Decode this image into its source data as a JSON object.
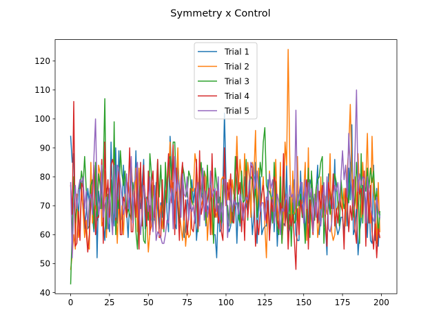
{
  "chart_data": {
    "type": "line",
    "title": "Symmetry x Control",
    "xlabel": "",
    "ylabel": "",
    "xlim": [
      -10,
      210
    ],
    "ylim": [
      39.6,
      127.4
    ],
    "xticks": [
      0,
      25,
      50,
      75,
      100,
      125,
      150,
      175,
      200
    ],
    "yticks": [
      40,
      50,
      60,
      70,
      80,
      90,
      100,
      110,
      120
    ],
    "grid": false,
    "legend_position": "upper center",
    "series": [
      {
        "name": "Trial 1",
        "color": "#1f77b4",
        "values": [
          94,
          85,
          88,
          60,
          74,
          66,
          79,
          74,
          70,
          62,
          68,
          76,
          71,
          80,
          66,
          61,
          83,
          52,
          75,
          69,
          78,
          64,
          58,
          76,
          65,
          61,
          92,
          70,
          63,
          90,
          64,
          89,
          64,
          66,
          84,
          71,
          68,
          59,
          72,
          82,
          69,
          71,
          89,
          67,
          73,
          69,
          77,
          86,
          62,
          64,
          70,
          70,
          65,
          66,
          65,
          78,
          69,
          62,
          71,
          66,
          70,
          82,
          68,
          61,
          94,
          82,
          70,
          64,
          62,
          86,
          76,
          69,
          81,
          59,
          61,
          72,
          70,
          69,
          79,
          71,
          76,
          58,
          65,
          77,
          75,
          72,
          80,
          63,
          70,
          67,
          76,
          62,
          60,
          60,
          52,
          70,
          61,
          62,
          77,
          102,
          79,
          64,
          61,
          63,
          69,
          64,
          73,
          57,
          71,
          63,
          80,
          72,
          80,
          70,
          68,
          79,
          71,
          60,
          67,
          85,
          57,
          70,
          80,
          60,
          62,
          63,
          63,
          79,
          60,
          65,
          76,
          61,
          74,
          56,
          67,
          77,
          58,
          64,
          63,
          84,
          60,
          62,
          65,
          71,
          79,
          60,
          58,
          58,
          82,
          66,
          75,
          60,
          69,
          64,
          79,
          77,
          72,
          65,
          75,
          84,
          60,
          68,
          76,
          63,
          63,
          53,
          81,
          68,
          71,
          69,
          86,
          63,
          60,
          62,
          66,
          66,
          60,
          73,
          63,
          83,
          72,
          98,
          60,
          62,
          70,
          53,
          61,
          65,
          77,
          76,
          71,
          59,
          74,
          58,
          57,
          84,
          58,
          76,
          56,
          67
        ]
      },
      {
        "name": "Trial 2",
        "color": "#ff7f0e",
        "values": [
          48,
          53,
          60,
          55,
          74,
          59,
          64,
          76,
          68,
          59,
          65,
          56,
          55,
          85,
          64,
          68,
          70,
          67,
          84,
          81,
          63,
          65,
          82,
          59,
          71,
          72,
          78,
          67,
          87,
          72,
          57,
          72,
          60,
          70,
          60,
          74,
          67,
          78,
          73,
          85,
          75,
          71,
          83,
          61,
          83,
          74,
          71,
          79,
          74,
          66,
          54,
          61,
          63,
          78,
          67,
          61,
          85,
          66,
          70,
          62,
          69,
          75,
          76,
          81,
          92,
          74,
          78,
          69,
          76,
          90,
          68,
          63,
          58,
          67,
          56,
          63,
          59,
          60,
          76,
          75,
          88,
          84,
          76,
          66,
          70,
          72,
          82,
          80,
          58,
          67,
          77,
          60,
          70,
          68,
          66,
          75,
          66,
          79,
          80,
          79,
          78,
          72,
          79,
          64,
          79,
          74,
          77,
          94,
          76,
          86,
          79,
          72,
          88,
          71,
          85,
          80,
          66,
          85,
          81,
          96,
          66,
          83,
          69,
          73,
          80,
          63,
          52,
          71,
          82,
          72,
          73,
          68,
          86,
          70,
          64,
          85,
          57,
          66,
          92,
          84,
          124,
          88,
          63,
          82,
          67,
          69,
          87,
          64,
          70,
          71,
          75,
          85,
          58,
          90,
          61,
          75,
          73,
          70,
          76,
          59,
          64,
          80,
          66,
          74,
          73,
          67,
          70,
          88,
          61,
          58,
          60,
          68,
          70,
          72,
          76,
          68,
          76,
          63,
          82,
          90,
          105,
          83,
          71,
          80,
          69,
          88,
          74,
          66,
          85,
          74,
          79,
          95,
          70,
          64,
          94,
          75,
          70,
          57,
          78,
          61
        ]
      },
      {
        "name": "Trial 3",
        "color": "#2ca02c",
        "values": [
          43,
          62,
          80,
          64,
          70,
          76,
          76,
          82,
          77,
          87,
          76,
          62,
          63,
          77,
          79,
          62,
          85,
          65,
          81,
          77,
          69,
          83,
          107,
          62,
          74,
          72,
          79,
          63,
          99,
          60,
          73,
          69,
          89,
          81,
          77,
          82,
          66,
          69,
          67,
          65,
          78,
          74,
          61,
          55,
          71,
          83,
          69,
          58,
          57,
          73,
          65,
          88,
          81,
          62,
          74,
          74,
          86,
          73,
          84,
          71,
          61,
          85,
          71,
          86,
          87,
          79,
          92,
          92,
          77,
          71,
          64,
          72,
          84,
          81,
          76,
          73,
          82,
          80,
          72,
          70,
          64,
          73,
          61,
          79,
          85,
          74,
          82,
          64,
          84,
          71,
          81,
          72,
          57,
          83,
          78,
          71,
          73,
          64,
          77,
          78,
          71,
          70,
          63,
          76,
          64,
          70,
          87,
          77,
          66,
          64,
          82,
          71,
          72,
          86,
          65,
          78,
          80,
          79,
          71,
          76,
          66,
          74,
          85,
          80,
          92,
          97,
          77,
          75,
          75,
          73,
          64,
          85,
          70,
          62,
          60,
          80,
          57,
          85,
          71,
          66,
          62,
          73,
          56,
          71,
          64,
          65,
          74,
          70,
          74,
          66,
          66,
          57,
          68,
          83,
          59,
          82,
          73,
          65,
          76,
          79,
          80,
          85,
          87,
          57,
          67,
          75,
          71,
          67,
          73,
          77,
          81,
          78,
          71,
          63,
          79,
          73,
          69,
          73,
          76,
          71,
          85,
          74,
          66,
          71,
          85,
          76,
          57,
          88,
          64,
          77,
          75,
          83,
          76,
          83,
          78,
          82,
          72,
          75,
          60,
          68
        ]
      },
      {
        "name": "Trial 4",
        "color": "#d62728",
        "values": [
          77,
          67,
          106,
          56,
          57,
          68,
          58,
          78,
          76,
          65,
          61,
          54,
          60,
          71,
          75,
          84,
          60,
          66,
          66,
          72,
          86,
          57,
          92,
          72,
          79,
          66,
          84,
          86,
          83,
          65,
          76,
          82,
          60,
          60,
          73,
          71,
          66,
          75,
          90,
          61,
          61,
          75,
          66,
          83,
          55,
          85,
          63,
          84,
          69,
          63,
          82,
          60,
          77,
          82,
          66,
          71,
          86,
          59,
          59,
          79,
          62,
          72,
          78,
          88,
          78,
          71,
          91,
          60,
          83,
          70,
          58,
          79,
          85,
          65,
          72,
          60,
          67,
          76,
          62,
          61,
          67,
          86,
          62,
          89,
          67,
          70,
          80,
          68,
          72,
          76,
          60,
          88,
          70,
          66,
          75,
          64,
          67,
          61,
          58,
          90,
          70,
          78,
          72,
          81,
          65,
          64,
          75,
          87,
          74,
          78,
          61,
          71,
          58,
          82,
          66,
          73,
          84,
          83,
          72,
          56,
          65,
          60,
          67,
          74,
          77,
          71,
          64,
          73,
          58,
          72,
          68,
          80,
          78,
          65,
          62,
          71,
          67,
          88,
          63,
          72,
          55,
          67,
          63,
          67,
          58,
          48,
          69,
          60,
          72,
          68,
          65,
          75,
          79,
          55,
          72,
          66,
          60,
          69,
          71,
          64,
          75,
          69,
          77,
          71,
          64,
          56,
          78,
          74,
          69,
          81,
          63,
          69,
          64,
          74,
          70,
          68,
          55,
          76,
          72,
          61,
          70,
          65,
          79,
          62,
          57,
          79,
          74,
          76,
          67,
          82,
          56,
          78,
          64,
          77,
          61,
          55,
          64,
          52,
          62,
          59
        ]
      },
      {
        "name": "Trial 5",
        "color": "#9467bd",
        "values": [
          78,
          52,
          70,
          77,
          69,
          76,
          79,
          78,
          80,
          69,
          75,
          62,
          72,
          74,
          67,
          87,
          100,
          75,
          67,
          71,
          84,
          66,
          70,
          73,
          62,
          76,
          67,
          60,
          84,
          66,
          84,
          83,
          78,
          73,
          67,
          70,
          81,
          69,
          75,
          87,
          64,
          78,
          80,
          85,
          68,
          60,
          68,
          77,
          73,
          72,
          68,
          80,
          66,
          61,
          77,
          58,
          61,
          60,
          59,
          57,
          57,
          60,
          65,
          64,
          71,
          76,
          62,
          87,
          75,
          79,
          75,
          66,
          81,
          74,
          73,
          80,
          65,
          72,
          68,
          70,
          64,
          73,
          78,
          63,
          74,
          83,
          65,
          75,
          66,
          70,
          82,
          73,
          75,
          76,
          68,
          80,
          65,
          71,
          64,
          79,
          79,
          59,
          66,
          76,
          68,
          72,
          70,
          71,
          67,
          74,
          71,
          65,
          70,
          73,
          72,
          76,
          85,
          84,
          80,
          76,
          82,
          75,
          68,
          71,
          71,
          65,
          73,
          72,
          81,
          76,
          79,
          64,
          68,
          74,
          71,
          60,
          69,
          68,
          72,
          74,
          68,
          77,
          73,
          74,
          68,
          103,
          70,
          74,
          78,
          78,
          64,
          79,
          69,
          78,
          73,
          76,
          61,
          74,
          66,
          77,
          66,
          63,
          69,
          78,
          67,
          80,
          62,
          61,
          64,
          72,
          77,
          75,
          78,
          71,
          80,
          89,
          79,
          84,
          73,
          95,
          82,
          75,
          70,
          88,
          110,
          75,
          81,
          77,
          80,
          79,
          64,
          80,
          75,
          70,
          67,
          65,
          64,
          73,
          68,
          66
        ]
      }
    ]
  }
}
